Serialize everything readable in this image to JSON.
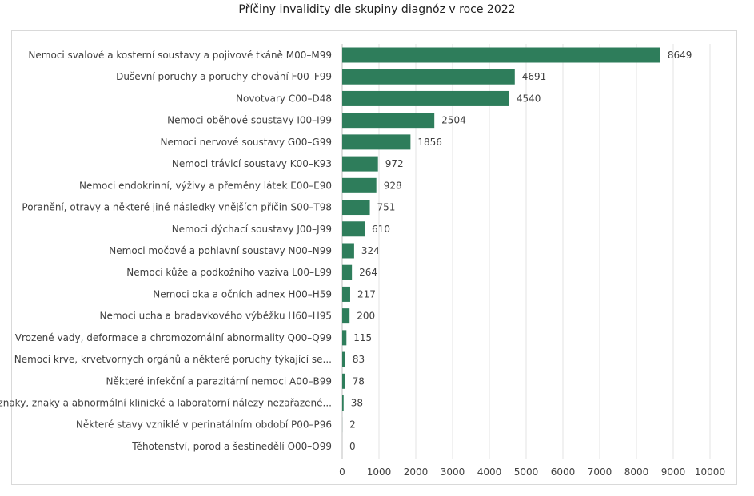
{
  "chart_data": {
    "type": "bar",
    "orientation": "horizontal",
    "title": "Příčiny invalidity dle skupiny diagnóz v roce 2022",
    "categories": [
      "Nemoci svalové a kosterní soustavy a pojivové tkáně M00–M99",
      "Duševní poruchy a poruchy chování F00–F99",
      "Novotvary C00–D48",
      "Nemoci oběhové soustavy I00–I99",
      "Nemoci nervové soustavy G00–G99",
      "Nemoci trávicí soustavy K00–K93",
      "Nemoci endokrinní, výživy a přeměny látek E00–E90",
      "Poranění, otravy a některé jiné následky vnějších příčin S00–T98",
      "Nemoci dýchací soustavy J00–J99",
      "Nemoci močové a pohlavní soustavy N00–N99",
      "Nemoci kůže a podkožního vaziva L00–L99",
      "Nemoci oka a očních adnex H00–H59",
      "Nemoci ucha a bradavkového výběžku H60–H95",
      "Vrozené vady, deformace a chromozomální abnormality Q00–Q99",
      "Nemoci krve, krvetvorných orgánů a některé poruchy týkající se...",
      "Některé infekční a parazitární nemoci A00–B99",
      "Příznaky, znaky a abnormální klinické a laboratorní nálezy nezařazené...",
      "Některé stavy vzniklé v perinatálním období P00–P96",
      "Těhotenství, porod a šestinedělí O00–O99"
    ],
    "values": [
      8649,
      4691,
      4540,
      2504,
      1856,
      972,
      928,
      751,
      610,
      324,
      264,
      217,
      200,
      115,
      83,
      78,
      38,
      2,
      0
    ],
    "xlim": [
      0,
      10000
    ],
    "xticks": [
      "0",
      "1000",
      "2000",
      "3000",
      "4000",
      "5000",
      "6000",
      "7000",
      "8000",
      "9000",
      "10000"
    ],
    "grid": true,
    "bar_color": "#2e7d5b",
    "grid_color": "#e3e3e3"
  }
}
